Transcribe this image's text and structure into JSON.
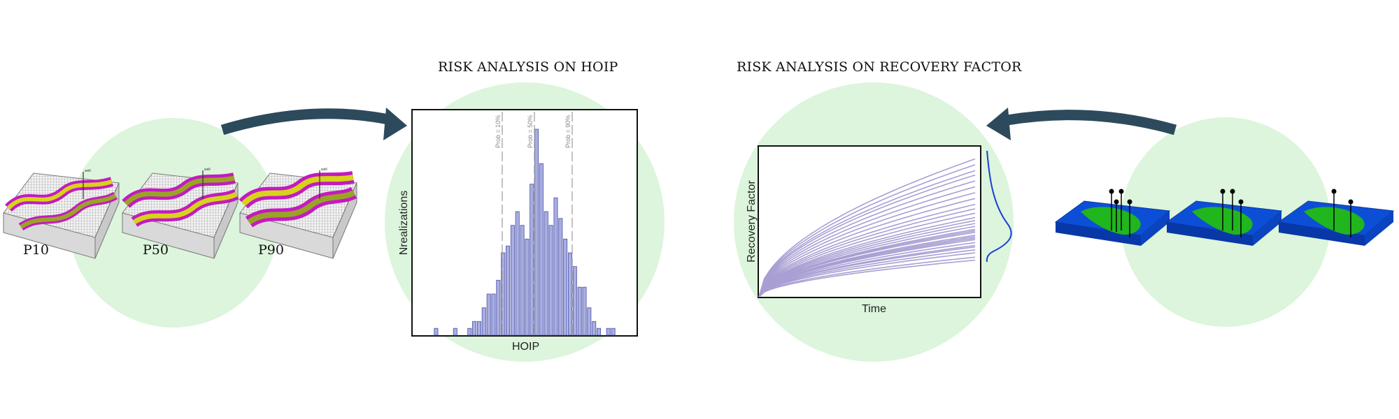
{
  "titles": {
    "hoip": "RISK ANALYSIS ON HOIP",
    "recovery": "RISK ANALYSIS ON RECOVERY FACTOR"
  },
  "models": [
    "P10",
    "P50",
    "P90"
  ],
  "hoip_chart": {
    "xlabel": "HOIP",
    "ylabel": "Nrealizations",
    "markers": [
      "Prob = 10%",
      "Prob = 50%",
      "Prob = 90%"
    ]
  },
  "recovery_chart": {
    "xlabel": "Time",
    "ylabel": "Recovery  Factor"
  },
  "colors": {
    "circle": "#dcf5dc",
    "arrow": "#2d4a5c",
    "bar_fill": "#a9aee0",
    "bar_stroke": "#4a50a8",
    "curve": "#a99fd3",
    "pdf_curve": "#1b3fd6",
    "magenta": "#c21bbf",
    "yellow": "#d7d21b",
    "olive": "#9aa326",
    "reservoir_blue": "#0c4fd6",
    "reservoir_green": "#21b51e"
  },
  "icons": [
    "curved-arrow-icon",
    "curved-arrow-icon",
    "well-icon"
  ],
  "chart_data": [
    {
      "type": "bar",
      "xlabel": "HOIP",
      "ylabel": "Nrealizations",
      "values": [
        1,
        0,
        0,
        0,
        1,
        0,
        0,
        1,
        2,
        2,
        4,
        6,
        6,
        8,
        12,
        13,
        16,
        18,
        16,
        14,
        22,
        30,
        25,
        18,
        16,
        20,
        17,
        14,
        12,
        10,
        7,
        7,
        4,
        2,
        1,
        0,
        1,
        1
      ],
      "annotations": [
        "Prob = 10%",
        "Prob = 50%",
        "Prob = 90%"
      ]
    },
    {
      "type": "line",
      "xlabel": "Time",
      "ylabel": "Recovery  Factor",
      "series_final_values": [
        0.94,
        0.9,
        0.86,
        0.83,
        0.79,
        0.75,
        0.71,
        0.67,
        0.63,
        0.6,
        0.57,
        0.54,
        0.52,
        0.5,
        0.48,
        0.46,
        0.45,
        0.44,
        0.42,
        0.41,
        0.4,
        0.39,
        0.37,
        0.35,
        0.34,
        0.32,
        0.3,
        0.27,
        0.25
      ]
    }
  ]
}
